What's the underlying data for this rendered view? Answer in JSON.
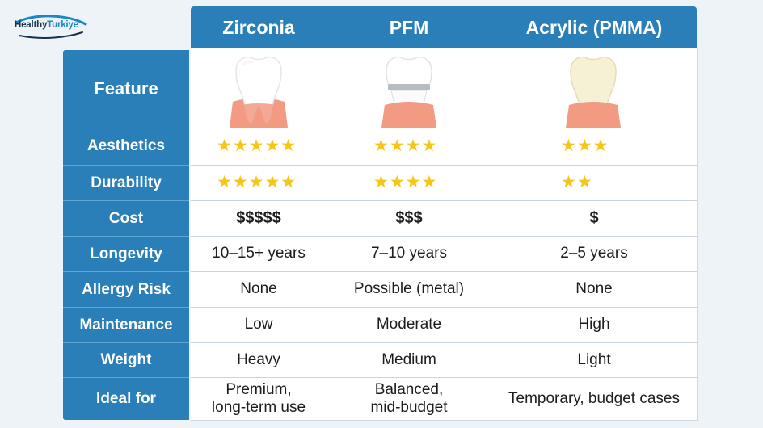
{
  "brand": {
    "part1": "Healthy",
    "part2": "Turkiye"
  },
  "columns": [
    "Zirconia",
    "PFM",
    "Acrylic (PMMA)"
  ],
  "feature_label": "Feature",
  "icons": [
    "zirconia-tooth-icon",
    "pfm-tooth-icon",
    "acrylic-tooth-icon"
  ],
  "colors": {
    "header": "#2a7fb8",
    "star": "#f5c518",
    "gum": "#f29a82"
  },
  "rows": [
    {
      "label": "Aesthetics",
      "ratings": [
        5,
        4,
        3
      ],
      "stars": [
        "★★★★★",
        "★★★★",
        "★★★"
      ]
    },
    {
      "label": "Durability",
      "ratings": [
        5,
        4,
        2
      ],
      "stars": [
        "★★★★★",
        "★★★★",
        "★★"
      ]
    },
    {
      "label": "Cost",
      "values": [
        "$$$$$",
        "$$$",
        "$"
      ]
    },
    {
      "label": "Longevity",
      "values": [
        "10–15+ years",
        "7–10 years",
        "2–5 years"
      ]
    },
    {
      "label": "Allergy Risk",
      "values": [
        "None",
        "Possible (metal)",
        "None"
      ]
    },
    {
      "label": "Maintenance",
      "values": [
        "Low",
        "Moderate",
        "High"
      ]
    },
    {
      "label": "Weight",
      "values": [
        "Heavy",
        "Medium",
        "Light"
      ]
    },
    {
      "label": "Ideal for",
      "values": [
        "Premium,\nlong-term use",
        "Balanced,\nmid-budget",
        "Temporary, budget cases"
      ]
    }
  ]
}
